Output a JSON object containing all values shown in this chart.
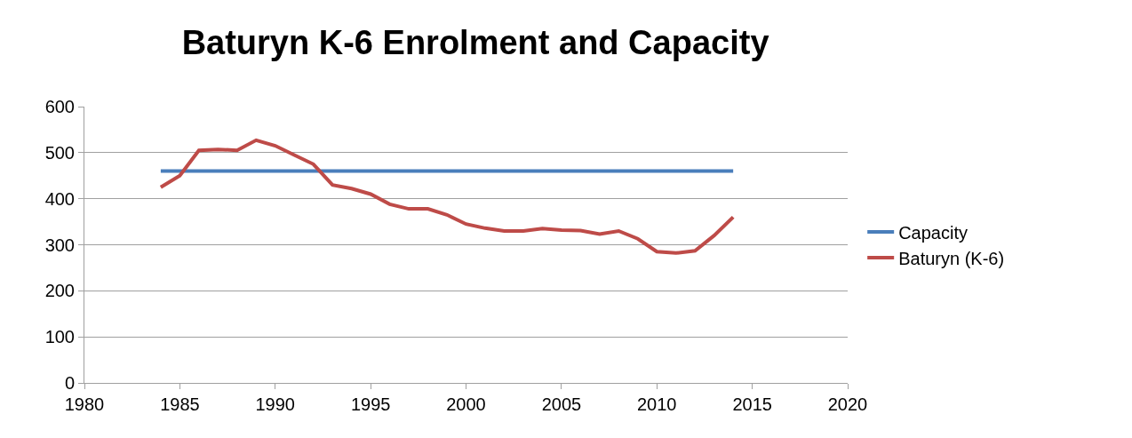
{
  "chart_data": {
    "type": "line",
    "title": "Baturyn K-6 Enrolment and Capacity",
    "x": [
      1984,
      1985,
      1986,
      1987,
      1988,
      1989,
      1990,
      1991,
      1992,
      1993,
      1994,
      1995,
      1996,
      1997,
      1998,
      1999,
      2000,
      2001,
      2002,
      2003,
      2004,
      2005,
      2006,
      2007,
      2008,
      2009,
      2010,
      2011,
      2012,
      2013,
      2014
    ],
    "series": [
      {
        "name": "Capacity",
        "color": "#4a7ebb",
        "values": [
          460,
          460,
          460,
          460,
          460,
          460,
          460,
          460,
          460,
          460,
          460,
          460,
          460,
          460,
          460,
          460,
          460,
          460,
          460,
          460,
          460,
          460,
          460,
          460,
          460,
          460,
          460,
          460,
          460,
          460,
          460
        ]
      },
      {
        "name": "Baturyn (K-6)",
        "color": "#be4b48",
        "values": [
          425,
          450,
          505,
          507,
          505,
          527,
          515,
          495,
          475,
          430,
          422,
          410,
          388,
          378,
          378,
          365,
          345,
          336,
          330,
          330,
          335,
          332,
          331,
          323,
          330,
          313,
          285,
          282,
          287,
          320,
          360
        ]
      }
    ],
    "xlim": [
      1980,
      2020
    ],
    "xticks": [
      1980,
      1985,
      1990,
      1995,
      2000,
      2005,
      2010,
      2015,
      2020
    ],
    "ylim": [
      0,
      600
    ],
    "yticks": [
      0,
      100,
      200,
      300,
      400,
      500,
      600
    ],
    "grid": "y",
    "legend": "right",
    "marker": "none",
    "line_style": "solid"
  }
}
